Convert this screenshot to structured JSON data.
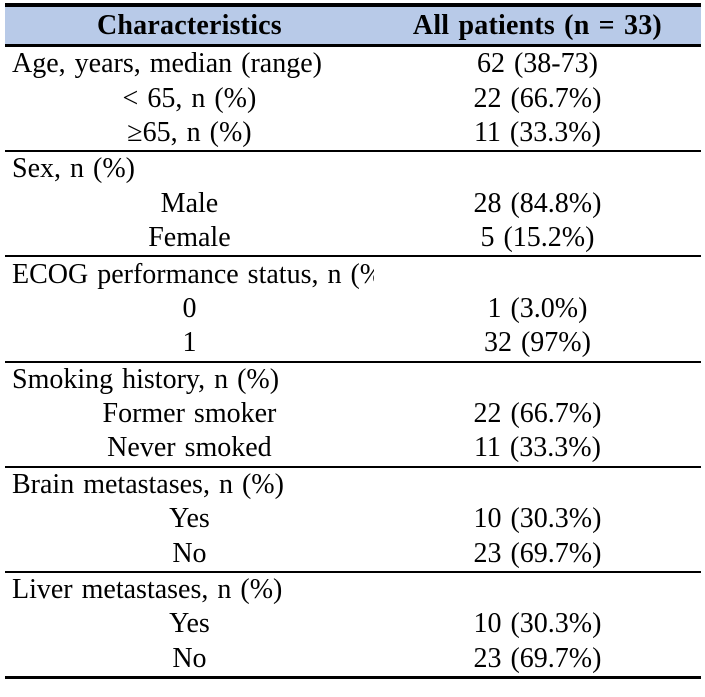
{
  "table": {
    "headers": [
      "Characteristics",
      "All patients (n = 33)"
    ],
    "colors": {
      "header_bg": "#B8CAE8",
      "border": "#000000",
      "text": "#000000"
    },
    "sections": [
      {
        "name": "age",
        "rows": [
          {
            "label": "Age, years, median (range)",
            "value": "62 (38-73)"
          },
          {
            "label": "< 65, n (%)",
            "value": "22 (66.7%)"
          },
          {
            "label": "≥65, n (%)",
            "value": "11 (33.3%)"
          }
        ]
      },
      {
        "name": "sex",
        "rows": [
          {
            "label": "Sex, n (%)",
            "value": ""
          },
          {
            "label": "Male",
            "value": "28 (84.8%)"
          },
          {
            "label": "Female",
            "value": "5 (15.2%)"
          }
        ]
      },
      {
        "name": "ecog",
        "rows": [
          {
            "label": "ECOG performance status, n (%)",
            "value": ""
          },
          {
            "label": "0",
            "value": "1 (3.0%)"
          },
          {
            "label": "1",
            "value": "32 (97%)"
          }
        ]
      },
      {
        "name": "smoking",
        "rows": [
          {
            "label": "Smoking history, n (%)",
            "value": ""
          },
          {
            "label": "Former smoker",
            "value": "22 (66.7%)"
          },
          {
            "label": "Never smoked",
            "value": "11 (33.3%)"
          }
        ]
      },
      {
        "name": "brain-metastases",
        "rows": [
          {
            "label": "Brain metastases, n (%)",
            "value": ""
          },
          {
            "label": "Yes",
            "value": "10 (30.3%)"
          },
          {
            "label": "No",
            "value": "23 (69.7%)"
          }
        ]
      },
      {
        "name": "liver-metastases",
        "rows": [
          {
            "label": "Liver metastases, n (%)",
            "value": ""
          },
          {
            "label": "Yes",
            "value": "10 (30.3%)"
          },
          {
            "label": "No",
            "value": "23 (69.7%)"
          }
        ]
      }
    ]
  }
}
